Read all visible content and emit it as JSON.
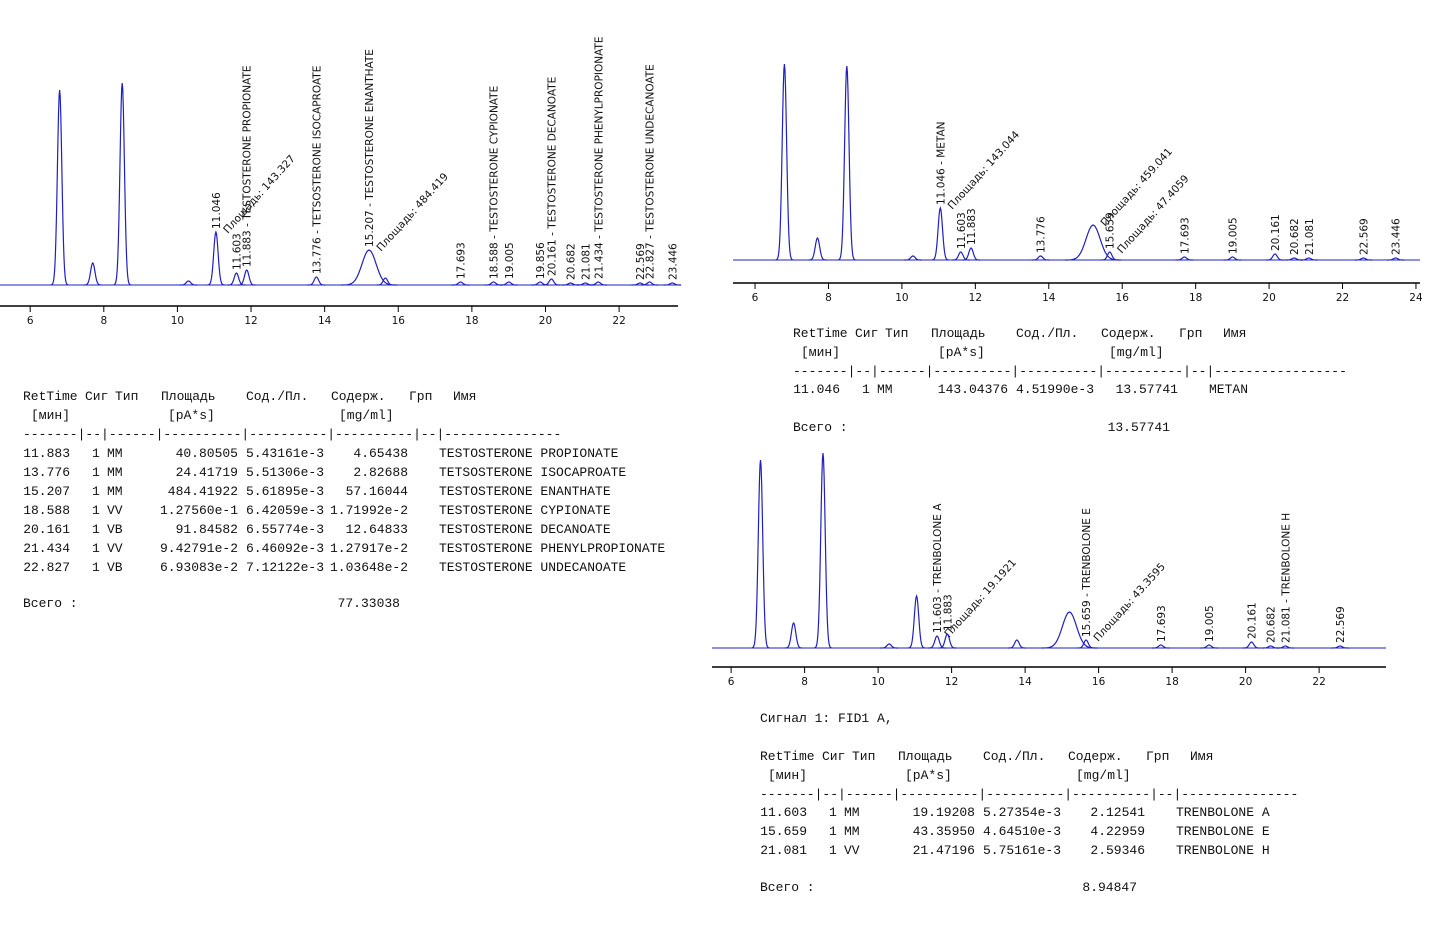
{
  "chart_data": [
    {
      "type": "chromatogram",
      "xlim": [
        5.18,
        23.6
      ],
      "xticks": [
        6,
        8,
        10,
        12,
        14,
        16,
        18,
        20,
        22
      ],
      "ylim": [
        0,
        220
      ],
      "color": "#2020c0",
      "peaks": [
        {
          "rt": 6.8,
          "height": 195
        },
        {
          "rt": 7.7,
          "height": 22
        },
        {
          "rt": 8.5,
          "height": 202
        },
        {
          "rt": 10.3,
          "height": 4
        },
        {
          "rt": 11.046,
          "height": 53,
          "label": "11.046",
          "area_label": "Площадь: 143.327"
        },
        {
          "rt": 11.603,
          "height": 12,
          "label": "11.603"
        },
        {
          "rt": 11.883,
          "height": 15,
          "label": "11.883 - TESTOSTERONE PROPIONATE"
        },
        {
          "rt": 13.776,
          "height": 8,
          "label": "13.776 - TETSOSTERONE ISOCAPROATE"
        },
        {
          "rt": 15.207,
          "height": 35,
          "label": "15.207 - TESTOSTERONE ENANTHATE",
          "area_label": "Площадь: 484.419"
        },
        {
          "rt": 15.65,
          "height": 7
        },
        {
          "rt": 17.693,
          "height": 3,
          "label": "17.693"
        },
        {
          "rt": 18.588,
          "height": 3,
          "label": "18.588 - TESTOSTERONE CYPIONATE"
        },
        {
          "rt": 19.005,
          "height": 3,
          "label": "19.005"
        },
        {
          "rt": 19.856,
          "height": 3,
          "label": "19.856"
        },
        {
          "rt": 20.161,
          "height": 6,
          "label": "20.161 - TESTOSTERONE DECANOATE"
        },
        {
          "rt": 20.682,
          "height": 2,
          "label": "20.682"
        },
        {
          "rt": 21.081,
          "height": 2,
          "label": "21.081"
        },
        {
          "rt": 21.434,
          "height": 3,
          "label": "21.434 - TESTOSTERONE PHENYLPROPIONATE"
        },
        {
          "rt": 22.569,
          "height": 2,
          "label": "22.569"
        },
        {
          "rt": 22.827,
          "height": 3,
          "label": "22.827 - TESTOSTERONE UNDECANOATE"
        },
        {
          "rt": 23.446,
          "height": 2,
          "label": "23.446"
        }
      ]
    },
    {
      "type": "chromatogram",
      "xlim": [
        5.4,
        24.11
      ],
      "xticks": [
        6,
        8,
        10,
        12,
        14,
        16,
        18,
        20,
        22,
        24
      ],
      "ylim": [
        0,
        220
      ],
      "color": "#2020c0",
      "peaks": [
        {
          "rt": 6.8,
          "height": 196
        },
        {
          "rt": 7.7,
          "height": 22
        },
        {
          "rt": 8.5,
          "height": 194
        },
        {
          "rt": 10.3,
          "height": 4
        },
        {
          "rt": 11.046,
          "height": 52,
          "label": "11.046 - METAN",
          "area_label": "Площадь: 143.044"
        },
        {
          "rt": 11.603,
          "height": 8,
          "label": "11.603"
        },
        {
          "rt": 11.883,
          "height": 12,
          "label": "11.883"
        },
        {
          "rt": 13.776,
          "height": 4,
          "label": "13.776"
        },
        {
          "rt": 15.207,
          "height": 35,
          "area_label": "Площадь: 459.041"
        },
        {
          "rt": 15.659,
          "height": 8,
          "label": "15.659",
          "area_label": "Площадь: 47.4059"
        },
        {
          "rt": 17.693,
          "height": 3,
          "label": "17.693"
        },
        {
          "rt": 19.005,
          "height": 3,
          "label": "19.005"
        },
        {
          "rt": 20.161,
          "height": 6,
          "label": "20.161"
        },
        {
          "rt": 20.682,
          "height": 2,
          "label": "20.682"
        },
        {
          "rt": 21.081,
          "height": 2,
          "label": "21.081"
        },
        {
          "rt": 22.569,
          "height": 2,
          "label": "22.569"
        },
        {
          "rt": 23.446,
          "height": 2,
          "label": "23.446"
        }
      ]
    },
    {
      "type": "chromatogram",
      "xlim": [
        5.48,
        23.82
      ],
      "xticks": [
        6,
        8,
        10,
        12,
        14,
        16,
        18,
        20,
        22
      ],
      "ylim": [
        0,
        220
      ],
      "color": "#2020c0",
      "peaks": [
        {
          "rt": 6.8,
          "height": 188
        },
        {
          "rt": 7.7,
          "height": 25
        },
        {
          "rt": 8.5,
          "height": 195
        },
        {
          "rt": 10.3,
          "height": 4
        },
        {
          "rt": 11.046,
          "height": 52
        },
        {
          "rt": 11.603,
          "height": 12,
          "label": "11.603 - TRENBOLONE A",
          "area_label": "Площадь: 19.1921"
        },
        {
          "rt": 11.883,
          "height": 14,
          "label": "11.883"
        },
        {
          "rt": 13.776,
          "height": 8
        },
        {
          "rt": 15.207,
          "height": 36
        },
        {
          "rt": 15.659,
          "height": 8,
          "label": "15.659 - TRENBOLONE E",
          "area_label": "Площадь: 43.3595"
        },
        {
          "rt": 17.693,
          "height": 3,
          "label": "17.693"
        },
        {
          "rt": 19.005,
          "height": 3,
          "label": "19.005"
        },
        {
          "rt": 20.161,
          "height": 6,
          "label": "20.161"
        },
        {
          "rt": 20.682,
          "height": 2,
          "label": "20.682"
        },
        {
          "rt": 21.081,
          "height": 2,
          "label": "21.081 - TRENBOLONE H"
        },
        {
          "rt": 22.569,
          "height": 2,
          "label": "22.569"
        }
      ]
    }
  ],
  "tables": [
    {
      "header": [
        "RetTime",
        "Сиг",
        "Тип",
        "Площадь",
        "Сод./Пл.",
        "Содерж.",
        "Грп",
        "Имя"
      ],
      "units": [
        "[мин]",
        "[pA*s]",
        "[mg/ml]"
      ],
      "separator": "-------|--|------|----------|----------|----------|--|---------------",
      "rows": [
        [
          "11.883",
          "1",
          "MM",
          "40.80505",
          "5.43161e-3",
          "4.65438",
          "TESTOSTERONE PROPIONATE"
        ],
        [
          "13.776",
          "1",
          "MM",
          "24.41719",
          "5.51306e-3",
          "2.82688",
          "TETSOSTERONE ISOCAPROATE"
        ],
        [
          "15.207",
          "1",
          "MM",
          "484.41922",
          "5.61895e-3",
          "57.16044",
          "TESTOSTERONE ENANTHATE"
        ],
        [
          "18.588",
          "1",
          "VV",
          "1.27560e-1",
          "6.42059e-3",
          "1.71992e-2",
          "TESTOSTERONE CYPIONATE"
        ],
        [
          "20.161",
          "1",
          "VB",
          "91.84582",
          "6.55774e-3",
          "12.64833",
          "TESTOSTERONE DECANOATE"
        ],
        [
          "21.434",
          "1",
          "VV",
          "9.42791e-2",
          "6.46092e-3",
          "1.27917e-2",
          "TESTOSTERONE PHENYLPROPIONATE"
        ],
        [
          "22.827",
          "1",
          "VB",
          "6.93083e-2",
          "7.12122e-3",
          "1.03648e-2",
          "TESTOSTERONE UNDECANOATE"
        ]
      ],
      "total_label": "Всего :",
      "total": "77.33038"
    },
    {
      "header": [
        "RetTime",
        "Сиг",
        "Тип",
        "Площадь",
        "Сод./Пл.",
        "Содерж.",
        "Грп",
        "Имя"
      ],
      "units": [
        "[мин]",
        "[pA*s]",
        "[mg/ml]"
      ],
      "separator": "-------|--|------|----------|----------|----------|--|-----------------",
      "rows": [
        [
          "11.046",
          "1",
          "MM",
          "143.04376",
          "4.51990e-3",
          "13.57741",
          "METAN"
        ]
      ],
      "total_label": "Всего :",
      "total": "13.57741"
    },
    {
      "signal": "Сигнал 1: FID1 A,",
      "header": [
        "RetTime",
        "Сиг",
        "Тип",
        "Площадь",
        "Сод./Пл.",
        "Содерж.",
        "Грп",
        "Имя"
      ],
      "units": [
        "[мин]",
        "[pA*s]",
        "[mg/ml]"
      ],
      "separator": "-------|--|------|----------|----------|----------|--|---------------",
      "rows": [
        [
          "11.603",
          "1",
          "MM",
          "19.19208",
          "5.27354e-3",
          "2.12541",
          "TRENBOLONE A"
        ],
        [
          "15.659",
          "1",
          "MM",
          "43.35950",
          "4.64510e-3",
          "4.22959",
          "TRENBOLONE E"
        ],
        [
          "21.081",
          "1",
          "VV",
          "21.47196",
          "5.75161e-3",
          "2.59346",
          "TRENBOLONE H"
        ]
      ],
      "total_label": "Всего :",
      "total": "8.94847"
    }
  ]
}
